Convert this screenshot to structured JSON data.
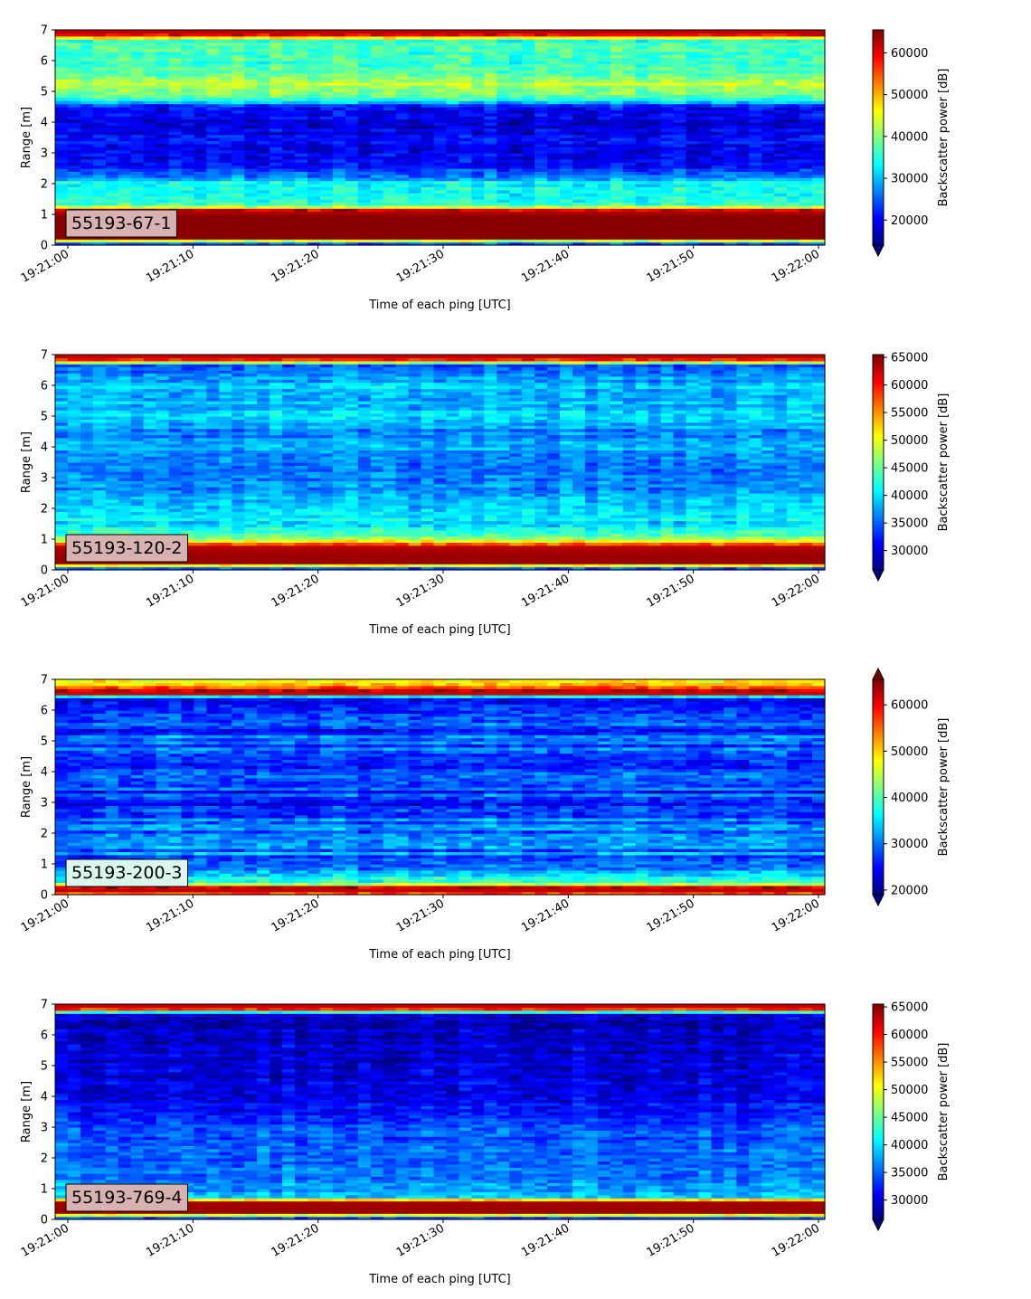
{
  "chart_data": [
    {
      "type": "heatmap",
      "label": "55193-67-1",
      "label_box_color": "#d8b2b0",
      "xlabel": "Time of each ping [UTC]",
      "ylabel": "Range [m]",
      "xlim": [
        "19:21:00",
        "19:22:00"
      ],
      "ylim": [
        0,
        7
      ],
      "x_ticks": [
        "19:21:00",
        "19:21:10",
        "19:21:20",
        "19:21:30",
        "19:21:40",
        "19:21:50",
        "19:22:00"
      ],
      "y_ticks": [
        0,
        1,
        2,
        3,
        4,
        5,
        6,
        7
      ],
      "colorbar": {
        "label": "Backscatter power [dB]",
        "vmin": 14000,
        "vmax": 65500,
        "ticks": [
          20000,
          30000,
          40000,
          50000,
          60000
        ],
        "extend": "min",
        "colormap": "jet"
      },
      "profile_range_m": [
        0,
        0.25,
        0.5,
        1.0,
        1.15,
        1.3,
        1.6,
        2.0,
        2.2,
        2.5,
        3.0,
        3.5,
        4.0,
        4.5,
        4.7,
        5.0,
        5.3,
        5.6,
        6.0,
        6.4,
        6.7,
        6.8,
        7.0
      ],
      "profile_power": [
        14000,
        65000,
        65000,
        65000,
        60000,
        36000,
        35000,
        34000,
        28000,
        22000,
        20000,
        20000,
        19000,
        21000,
        33000,
        40000,
        43000,
        38000,
        36000,
        37000,
        36000,
        58000,
        64000
      ]
    },
    {
      "type": "heatmap",
      "label": "55193-120-2",
      "label_box_color": "#d8b2b0",
      "xlabel": "Time of each ping [UTC]",
      "ylabel": "Range [m]",
      "xlim": [
        "19:21:00",
        "19:22:00"
      ],
      "ylim": [
        0,
        7
      ],
      "x_ticks": [
        "19:21:00",
        "19:21:10",
        "19:21:20",
        "19:21:30",
        "19:21:40",
        "19:21:50",
        "19:22:00"
      ],
      "y_ticks": [
        0,
        1,
        2,
        3,
        4,
        5,
        6,
        7
      ],
      "colorbar": {
        "label": "Backscatter power [dB]",
        "vmin": 26500,
        "vmax": 65500,
        "ticks": [
          30000,
          35000,
          40000,
          45000,
          50000,
          55000,
          60000,
          65000
        ],
        "extend": "min",
        "colormap": "jet"
      },
      "profile_range_m": [
        0,
        0.25,
        0.5,
        0.8,
        0.9,
        1.1,
        1.5,
        2.0,
        2.5,
        3.0,
        3.5,
        4.0,
        4.5,
        5.0,
        5.5,
        6.0,
        6.4,
        6.7,
        6.8,
        7.0
      ],
      "profile_power": [
        26500,
        64500,
        64500,
        63000,
        52000,
        44000,
        40000,
        40000,
        37000,
        36000,
        36000,
        37500,
        36000,
        40000,
        38000,
        39000,
        36000,
        35000,
        58000,
        64500
      ]
    },
    {
      "type": "heatmap",
      "label": "55193-200-3",
      "label_box_color": "#d9f7ee",
      "xlabel": "Time of each ping [UTC]",
      "ylabel": "Range [m]",
      "xlim": [
        "19:21:00",
        "19:22:00"
      ],
      "ylim": [
        0,
        7
      ],
      "x_ticks": [
        "19:21:00",
        "19:21:10",
        "19:21:20",
        "19:21:30",
        "19:21:40",
        "19:21:50",
        "19:22:00"
      ],
      "y_ticks": [
        0,
        1,
        2,
        3,
        4,
        5,
        6,
        7
      ],
      "colorbar": {
        "label": "Backscatter power [dB]",
        "vmin": 19000,
        "vmax": 65500,
        "ticks": [
          20000,
          30000,
          40000,
          50000,
          60000
        ],
        "extend": "both",
        "colormap": "jet"
      },
      "profile_range_m": [
        0,
        0.1,
        0.25,
        0.35,
        0.5,
        0.8,
        1.2,
        1.8,
        2.5,
        3.0,
        3.8,
        4.5,
        5.2,
        5.8,
        6.4,
        6.55,
        6.7,
        6.85,
        7.0
      ],
      "profile_power": [
        45000,
        64000,
        60000,
        47000,
        38000,
        33000,
        30000,
        29000,
        31000,
        27000,
        28000,
        29000,
        28000,
        27000,
        25000,
        62000,
        58000,
        52000,
        48000
      ]
    },
    {
      "type": "heatmap",
      "label": "55193-769-4",
      "label_box_color": "#d8b2b0",
      "xlabel": "Time of each ping [UTC]",
      "ylabel": "Range [m]",
      "xlim": [
        "19:21:00",
        "19:22:00"
      ],
      "ylim": [
        0,
        7
      ],
      "x_ticks": [
        "19:21:00",
        "19:21:10",
        "19:21:20",
        "19:21:30",
        "19:21:40",
        "19:21:50",
        "19:22:00"
      ],
      "y_ticks": [
        0,
        1,
        2,
        3,
        4,
        5,
        6,
        7
      ],
      "colorbar": {
        "label": "Backscatter power [dB]",
        "vmin": 26500,
        "vmax": 65500,
        "ticks": [
          30000,
          35000,
          40000,
          45000,
          50000,
          55000,
          60000,
          65000
        ],
        "extend": "min",
        "colormap": "jet"
      },
      "profile_range_m": [
        0,
        0.25,
        0.6,
        0.7,
        1.0,
        1.5,
        2.0,
        2.5,
        3.0,
        3.5,
        4.0,
        5.0,
        6.0,
        6.7,
        6.8,
        7.0
      ],
      "profile_power": [
        26500,
        64500,
        64000,
        40000,
        37000,
        36000,
        36000,
        35000,
        34000,
        32000,
        31000,
        30000,
        29500,
        29000,
        58000,
        64500
      ]
    }
  ]
}
